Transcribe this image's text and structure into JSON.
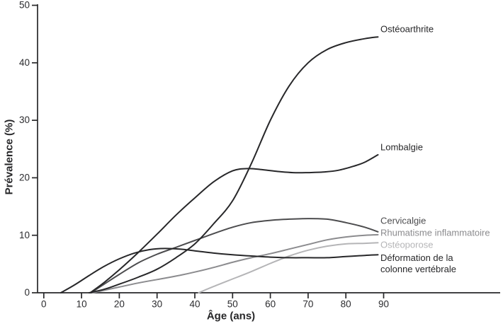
{
  "figure": {
    "background": "#ffffff",
    "axis_color": "#272729",
    "tick_label_color": "#2b2b2e"
  },
  "chart_data": {
    "type": "line",
    "title": "",
    "xlabel": "Âge (ans)",
    "ylabel": "Prévalence (%)",
    "xlim": [
      0,
      121
    ],
    "ylim": [
      0,
      50
    ],
    "xticks": [
      0,
      10,
      20,
      30,
      40,
      50,
      60,
      70,
      80,
      90
    ],
    "yticks": [
      0,
      10,
      20,
      30,
      40,
      50
    ],
    "grid": false,
    "legend_position": "labels at line ends, right side",
    "series": [
      {
        "name": "Ostéoarthrite",
        "color": "#272729",
        "points": [
          [
            12,
            0
          ],
          [
            16,
            0.6
          ],
          [
            20,
            1.5
          ],
          [
            25,
            2.7
          ],
          [
            30,
            4.1
          ],
          [
            35,
            6.1
          ],
          [
            40,
            8.5
          ],
          [
            45,
            12
          ],
          [
            50,
            16
          ],
          [
            55,
            22.5
          ],
          [
            60,
            30
          ],
          [
            65,
            36
          ],
          [
            70,
            40
          ],
          [
            75,
            42.3
          ],
          [
            80,
            43.5
          ],
          [
            85,
            44.2
          ],
          [
            88.5,
            44.5
          ]
        ]
      },
      {
        "name": "Lombalgie",
        "color": "#272729",
        "points": [
          [
            12.3,
            0
          ],
          [
            16,
            1.8
          ],
          [
            20,
            4
          ],
          [
            25,
            7
          ],
          [
            30,
            10.2
          ],
          [
            35,
            13.5
          ],
          [
            40,
            16.5
          ],
          [
            45,
            19.3
          ],
          [
            50,
            21.2
          ],
          [
            54,
            21.6
          ],
          [
            58,
            21.4
          ],
          [
            62,
            21.1
          ],
          [
            66,
            20.9
          ],
          [
            70,
            20.9
          ],
          [
            74,
            21
          ],
          [
            78,
            21.3
          ],
          [
            82,
            22
          ],
          [
            85,
            22.7
          ],
          [
            88.5,
            24
          ]
        ]
      },
      {
        "name": "Cervicalgie",
        "color": "#4c4c4e",
        "points": [
          [
            12.5,
            0
          ],
          [
            16,
            1.5
          ],
          [
            20,
            3.2
          ],
          [
            25,
            5.2
          ],
          [
            30,
            6.7
          ],
          [
            35,
            7.9
          ],
          [
            40,
            9.1
          ],
          [
            45,
            10.3
          ],
          [
            50,
            11.4
          ],
          [
            55,
            12.2
          ],
          [
            60,
            12.6
          ],
          [
            65,
            12.8
          ],
          [
            70,
            12.9
          ],
          [
            75,
            12.8
          ],
          [
            80,
            12.2
          ],
          [
            85,
            11.4
          ],
          [
            88.5,
            10.6
          ]
        ]
      },
      {
        "name": "Rhumatisme inflammatoire",
        "color": "#8b8b8e",
        "points": [
          [
            13,
            0
          ],
          [
            20,
            1
          ],
          [
            25,
            1.7
          ],
          [
            30,
            2.3
          ],
          [
            35,
            2.9
          ],
          [
            40,
            3.6
          ],
          [
            45,
            4.4
          ],
          [
            50,
            5.3
          ],
          [
            55,
            6.1
          ],
          [
            60,
            6.8
          ],
          [
            65,
            7.6
          ],
          [
            70,
            8.4
          ],
          [
            75,
            9.2
          ],
          [
            80,
            9.7
          ],
          [
            85,
            10
          ],
          [
            88.5,
            10.1
          ]
        ]
      },
      {
        "name": "Ostéoporose",
        "color": "#b5b5b7",
        "points": [
          [
            41,
            0
          ],
          [
            45,
            1.1
          ],
          [
            50,
            2.4
          ],
          [
            55,
            3.7
          ],
          [
            60,
            5.1
          ],
          [
            65,
            6.4
          ],
          [
            70,
            7.4
          ],
          [
            75,
            8.1
          ],
          [
            80,
            8.5
          ],
          [
            85,
            8.6
          ],
          [
            88.5,
            8.7
          ]
        ]
      },
      {
        "name": "Déformation de la colonne vertébrale",
        "label_lines": [
          "Déformation de la",
          "colonne vertébrale"
        ],
        "color": "#272729",
        "points": [
          [
            4.5,
            0
          ],
          [
            8,
            1.3
          ],
          [
            12,
            3
          ],
          [
            16,
            4.6
          ],
          [
            20,
            5.9
          ],
          [
            24,
            6.9
          ],
          [
            28,
            7.5
          ],
          [
            32,
            7.7
          ],
          [
            36,
            7.6
          ],
          [
            40,
            7.3
          ],
          [
            45,
            6.9
          ],
          [
            50,
            6.6
          ],
          [
            55,
            6.4
          ],
          [
            60,
            6.2
          ],
          [
            65,
            6.1
          ],
          [
            70,
            6.1
          ],
          [
            75,
            6.1
          ],
          [
            80,
            6.3
          ],
          [
            85,
            6.5
          ],
          [
            88.5,
            6.6
          ]
        ]
      }
    ]
  }
}
